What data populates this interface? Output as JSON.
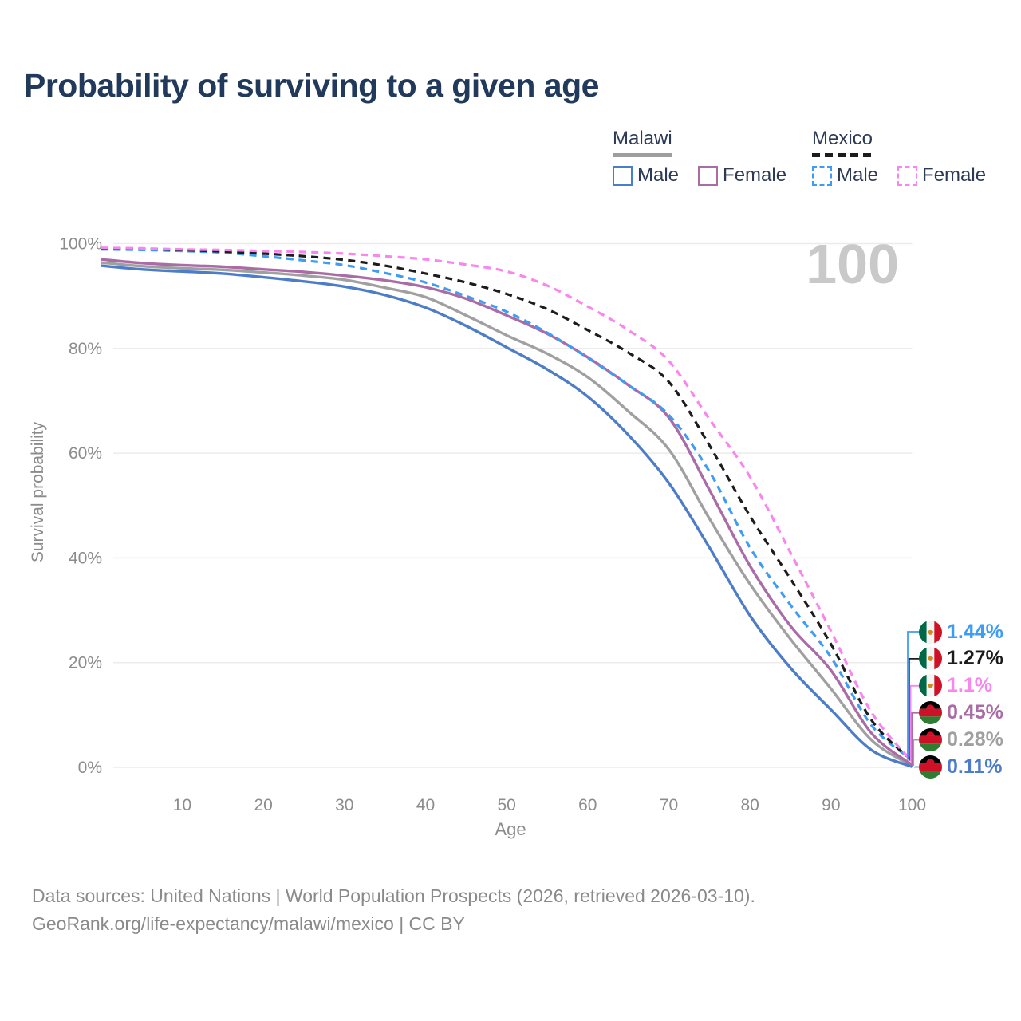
{
  "title": "Probability of surviving to a given age",
  "watermark": "100",
  "legend": {
    "groups": [
      {
        "label": "Malawi",
        "line_style": "solid",
        "line_color": "#9e9e9e",
        "items": [
          {
            "label": "Male",
            "color": "#4d7dc9",
            "dashed": false
          },
          {
            "label": "Female",
            "color": "#aa6ba6",
            "dashed": false
          }
        ]
      },
      {
        "label": "Mexico",
        "line_style": "dashed",
        "line_color": "#1c1c1c",
        "items": [
          {
            "label": "Male",
            "color": "#3f9cf4",
            "dashed": true
          },
          {
            "label": "Female",
            "color": "#f985ee",
            "dashed": true
          }
        ]
      }
    ]
  },
  "chart_data": {
    "type": "line",
    "title": "Probability of surviving to a given age",
    "xlabel": "Age",
    "ylabel": "Survival probability",
    "xlim": [
      0,
      100
    ],
    "ylim": [
      0,
      100
    ],
    "grid": "horizontal",
    "legend_position": "top-right",
    "xticks": [
      10,
      20,
      30,
      40,
      50,
      60,
      70,
      80,
      90,
      100
    ],
    "ytick_values": [
      0,
      20,
      40,
      60,
      80,
      100
    ],
    "ytick_labels": [
      "0%",
      "20%",
      "40%",
      "60%",
      "80%",
      "100%"
    ],
    "x": [
      0,
      5,
      10,
      15,
      20,
      25,
      30,
      35,
      40,
      45,
      50,
      55,
      60,
      65,
      70,
      75,
      80,
      85,
      90,
      95,
      100
    ],
    "series": [
      {
        "name": "Malawi Both sexes",
        "country": "Malawi",
        "sex": "Both sexes",
        "color": "#a0a0a0",
        "dashed": false,
        "values": [
          96.4,
          95.7,
          95.3,
          95.0,
          94.5,
          93.9,
          93.1,
          91.6,
          89.8,
          86.3,
          82.5,
          79.0,
          74.5,
          68.0,
          60.7,
          47.5,
          35.0,
          24.5,
          15.0,
          5.2,
          0.28
        ]
      },
      {
        "name": "Malawi Male",
        "country": "Malawi",
        "sex": "Male",
        "color": "#4d7dc9",
        "dashed": false,
        "values": [
          95.8,
          95.1,
          94.7,
          94.3,
          93.6,
          92.8,
          91.8,
          90.2,
          87.8,
          84.3,
          80.2,
          76.0,
          70.8,
          63.5,
          54.3,
          42.0,
          29.0,
          19.0,
          11.0,
          3.3,
          0.11
        ]
      },
      {
        "name": "Malawi Female",
        "country": "Malawi",
        "sex": "Female",
        "color": "#aa6ba6",
        "dashed": false,
        "values": [
          97.0,
          96.3,
          95.9,
          95.6,
          95.1,
          94.6,
          93.9,
          93.0,
          91.7,
          89.5,
          86.3,
          82.8,
          78.3,
          73.0,
          66.8,
          53.0,
          38.5,
          27.0,
          18.5,
          6.5,
          0.45
        ]
      },
      {
        "name": "Mexico Male",
        "country": "Mexico",
        "sex": "Male",
        "color": "#3f9cf4",
        "dashed": true,
        "values": [
          98.9,
          98.8,
          98.6,
          98.3,
          97.6,
          96.8,
          95.9,
          94.4,
          92.6,
          90.0,
          87.0,
          83.0,
          78.2,
          73.0,
          67.3,
          56.5,
          42.0,
          31.0,
          21.0,
          8.0,
          1.44
        ]
      },
      {
        "name": "Mexico Both sexes",
        "country": "Mexico",
        "sex": "Both sexes",
        "color": "#1c1c1c",
        "dashed": true,
        "values": [
          99.1,
          99.0,
          98.8,
          98.5,
          98.1,
          97.6,
          96.9,
          95.8,
          94.3,
          92.6,
          90.4,
          87.5,
          83.5,
          79.2,
          73.6,
          61.5,
          48.0,
          36.0,
          23.5,
          9.0,
          1.27
        ]
      },
      {
        "name": "Mexico Female",
        "country": "Mexico",
        "sex": "Female",
        "color": "#f985ee",
        "dashed": true,
        "values": [
          99.2,
          99.1,
          98.9,
          98.8,
          98.6,
          98.4,
          98.1,
          97.6,
          97.0,
          96.0,
          94.7,
          92.0,
          88.0,
          83.5,
          77.6,
          66.5,
          55.5,
          41.0,
          26.0,
          10.5,
          1.1
        ]
      }
    ],
    "end_labels": [
      {
        "series": "Mexico Male",
        "text": "1.44%",
        "flag": "mexico"
      },
      {
        "series": "Mexico Both sexes",
        "text": "1.27%",
        "flag": "mexico"
      },
      {
        "series": "Mexico Female",
        "text": "1.1%",
        "flag": "mexico"
      },
      {
        "series": "Malawi Female",
        "text": "0.45%",
        "flag": "malawi"
      },
      {
        "series": "Malawi Both sexes",
        "text": "0.28%",
        "flag": "malawi"
      },
      {
        "series": "Malawi Male",
        "text": "0.11%",
        "flag": "malawi"
      }
    ]
  },
  "footer": {
    "line1": "Data sources: United Nations | World Population Prospects (2026, retrieved 2026-03-10).",
    "line2": "GeoRank.org/life-expectancy/malawi/mexico | CC BY"
  }
}
